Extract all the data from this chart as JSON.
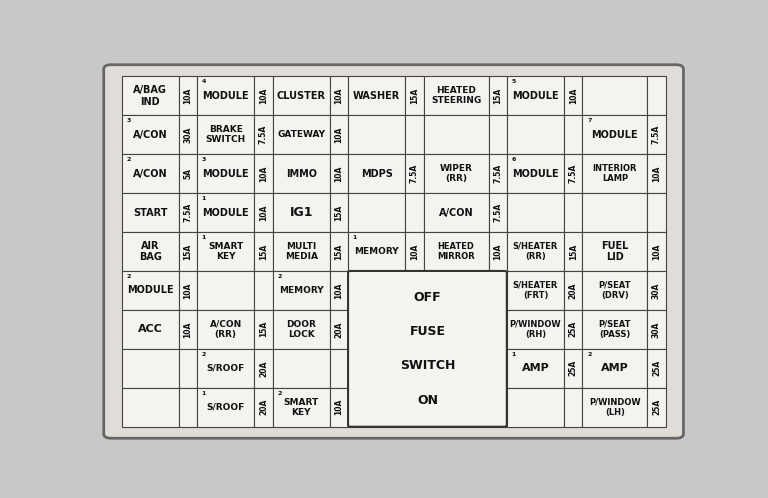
{
  "bg_color": "#c8c8c8",
  "outer_bg": "#e0ddd8",
  "cell_bg": "#f5f3ee",
  "border_color": "#444444",
  "text_color": "#111111",
  "grid_rows": 9,
  "grid_cols": 14,
  "col_widths": [
    2.2,
    0.7,
    2.2,
    0.7,
    2.2,
    0.7,
    2.2,
    0.7,
    2.5,
    0.7,
    2.2,
    0.7,
    2.5,
    0.7
  ],
  "row_heights": [
    1.0,
    1.0,
    1.0,
    1.0,
    1.0,
    1.0,
    1.0,
    1.0,
    1.0
  ],
  "cells": [
    {
      "r": 0,
      "c": 0,
      "label": "A/BAG\nIND",
      "sup": "",
      "fs": 7
    },
    {
      "r": 0,
      "c": 1,
      "label": "10A",
      "vert": true,
      "fs": 5.5
    },
    {
      "r": 0,
      "c": 2,
      "label": "MODULE",
      "sup": "4",
      "fs": 7
    },
    {
      "r": 0,
      "c": 3,
      "label": "10A",
      "vert": true,
      "fs": 5.5
    },
    {
      "r": 0,
      "c": 4,
      "label": "CLUSTER",
      "sup": "",
      "fs": 7
    },
    {
      "r": 0,
      "c": 5,
      "label": "10A",
      "vert": true,
      "fs": 5.5
    },
    {
      "r": 0,
      "c": 6,
      "label": "WASHER",
      "sup": "",
      "fs": 7
    },
    {
      "r": 0,
      "c": 7,
      "label": "15A",
      "vert": true,
      "fs": 5.5
    },
    {
      "r": 0,
      "c": 8,
      "label": "HEATED\nSTEERING",
      "sup": "",
      "fs": 6.5
    },
    {
      "r": 0,
      "c": 9,
      "label": "15A",
      "vert": true,
      "fs": 5.5
    },
    {
      "r": 0,
      "c": 10,
      "label": "MODULE",
      "sup": "5",
      "fs": 7
    },
    {
      "r": 0,
      "c": 11,
      "label": "10A",
      "vert": true,
      "fs": 5.5
    },
    {
      "r": 0,
      "c": 12,
      "label": "",
      "sup": "",
      "fs": 7
    },
    {
      "r": 0,
      "c": 13,
      "label": "",
      "vert": true,
      "fs": 5.5
    },
    {
      "r": 1,
      "c": 0,
      "label": "A/CON",
      "sup": "3",
      "fs": 7
    },
    {
      "r": 1,
      "c": 1,
      "label": "30A",
      "vert": true,
      "fs": 5.5
    },
    {
      "r": 1,
      "c": 2,
      "label": "BRAKE\nSWITCH",
      "sup": "",
      "fs": 6.5
    },
    {
      "r": 1,
      "c": 3,
      "label": "7.5A",
      "vert": true,
      "fs": 5.5
    },
    {
      "r": 1,
      "c": 4,
      "label": "GATEWAY",
      "sup": "",
      "fs": 6.5
    },
    {
      "r": 1,
      "c": 5,
      "label": "10A",
      "vert": true,
      "fs": 5.5
    },
    {
      "r": 1,
      "c": 6,
      "label": "",
      "sup": "",
      "fs": 7
    },
    {
      "r": 1,
      "c": 7,
      "label": "",
      "vert": false,
      "fs": 5.5
    },
    {
      "r": 1,
      "c": 8,
      "label": "",
      "sup": "",
      "fs": 7
    },
    {
      "r": 1,
      "c": 9,
      "label": "",
      "vert": false,
      "fs": 5.5
    },
    {
      "r": 1,
      "c": 10,
      "label": "",
      "sup": "",
      "fs": 7
    },
    {
      "r": 1,
      "c": 11,
      "label": "",
      "vert": false,
      "fs": 5.5
    },
    {
      "r": 1,
      "c": 12,
      "label": "MODULE",
      "sup": "7",
      "fs": 7
    },
    {
      "r": 1,
      "c": 13,
      "label": "7.5A",
      "vert": true,
      "fs": 5.5
    },
    {
      "r": 2,
      "c": 0,
      "label": "A/CON",
      "sup": "2",
      "fs": 7
    },
    {
      "r": 2,
      "c": 1,
      "label": "5A",
      "vert": true,
      "fs": 5.5
    },
    {
      "r": 2,
      "c": 2,
      "label": "MODULE",
      "sup": "3",
      "fs": 7
    },
    {
      "r": 2,
      "c": 3,
      "label": "10A",
      "vert": true,
      "fs": 5.5
    },
    {
      "r": 2,
      "c": 4,
      "label": "IMMO",
      "sup": "",
      "fs": 7
    },
    {
      "r": 2,
      "c": 5,
      "label": "10A",
      "vert": true,
      "fs": 5.5
    },
    {
      "r": 2,
      "c": 6,
      "label": "MDPS",
      "sup": "",
      "fs": 7
    },
    {
      "r": 2,
      "c": 7,
      "label": "7.5A",
      "vert": true,
      "fs": 5.5
    },
    {
      "r": 2,
      "c": 8,
      "label": "WIPER\n(RR)",
      "sup": "",
      "fs": 6.5
    },
    {
      "r": 2,
      "c": 9,
      "label": "7.5A",
      "vert": true,
      "fs": 5.5
    },
    {
      "r": 2,
      "c": 10,
      "label": "MODULE",
      "sup": "6",
      "fs": 7
    },
    {
      "r": 2,
      "c": 11,
      "label": "7.5A",
      "vert": true,
      "fs": 5.5
    },
    {
      "r": 2,
      "c": 12,
      "label": "INTERIOR\nLAMP",
      "sup": "",
      "fs": 6
    },
    {
      "r": 2,
      "c": 13,
      "label": "10A",
      "vert": true,
      "fs": 5.5
    },
    {
      "r": 3,
      "c": 0,
      "label": "START",
      "sup": "",
      "fs": 7
    },
    {
      "r": 3,
      "c": 1,
      "label": "7.5A",
      "vert": true,
      "fs": 5.5
    },
    {
      "r": 3,
      "c": 2,
      "label": "MODULE",
      "sup": "1",
      "fs": 7
    },
    {
      "r": 3,
      "c": 3,
      "label": "10A",
      "vert": true,
      "fs": 5.5
    },
    {
      "r": 3,
      "c": 4,
      "label": "IG1",
      "sup": "",
      "fs": 9
    },
    {
      "r": 3,
      "c": 5,
      "label": "15A",
      "vert": true,
      "fs": 5.5
    },
    {
      "r": 3,
      "c": 6,
      "label": "",
      "sup": "",
      "fs": 7
    },
    {
      "r": 3,
      "c": 7,
      "label": "",
      "vert": false,
      "fs": 5.5
    },
    {
      "r": 3,
      "c": 8,
      "label": "A/CON",
      "sup": "",
      "fs": 7
    },
    {
      "r": 3,
      "c": 9,
      "label": "7.5A",
      "vert": true,
      "fs": 5.5
    },
    {
      "r": 3,
      "c": 10,
      "label": "",
      "sup": "",
      "fs": 7
    },
    {
      "r": 3,
      "c": 11,
      "label": "",
      "vert": false,
      "fs": 5.5
    },
    {
      "r": 3,
      "c": 12,
      "label": "",
      "sup": "",
      "fs": 7
    },
    {
      "r": 3,
      "c": 13,
      "label": "",
      "vert": false,
      "fs": 5.5
    },
    {
      "r": 4,
      "c": 0,
      "label": "AIR\nBAG",
      "sup": "",
      "fs": 7
    },
    {
      "r": 4,
      "c": 1,
      "label": "15A",
      "vert": true,
      "fs": 5.5
    },
    {
      "r": 4,
      "c": 2,
      "label": "SMART\nKEY",
      "sup": "1",
      "fs": 6.5
    },
    {
      "r": 4,
      "c": 3,
      "label": "15A",
      "vert": true,
      "fs": 5.5
    },
    {
      "r": 4,
      "c": 4,
      "label": "MULTI\nMEDIA",
      "sup": "",
      "fs": 6.5
    },
    {
      "r": 4,
      "c": 5,
      "label": "15A",
      "vert": true,
      "fs": 5.5
    },
    {
      "r": 4,
      "c": 6,
      "label": "MEMORY",
      "sup": "1",
      "fs": 6.5
    },
    {
      "r": 4,
      "c": 7,
      "label": "10A",
      "vert": true,
      "fs": 5.5
    },
    {
      "r": 4,
      "c": 8,
      "label": "HEATED\nMIRROR",
      "sup": "",
      "fs": 6
    },
    {
      "r": 4,
      "c": 9,
      "label": "10A",
      "vert": true,
      "fs": 5.5
    },
    {
      "r": 4,
      "c": 10,
      "label": "S/HEATER\n(RR)",
      "sup": "",
      "fs": 6
    },
    {
      "r": 4,
      "c": 11,
      "label": "15A",
      "vert": true,
      "fs": 5.5
    },
    {
      "r": 4,
      "c": 12,
      "label": "FUEL\nLID",
      "sup": "",
      "fs": 7
    },
    {
      "r": 4,
      "c": 13,
      "label": "10A",
      "vert": true,
      "fs": 5.5
    },
    {
      "r": 5,
      "c": 0,
      "label": "MODULE",
      "sup": "2",
      "fs": 7
    },
    {
      "r": 5,
      "c": 1,
      "label": "10A",
      "vert": true,
      "fs": 5.5
    },
    {
      "r": 5,
      "c": 2,
      "label": "",
      "sup": "",
      "fs": 7
    },
    {
      "r": 5,
      "c": 3,
      "label": "",
      "vert": false,
      "fs": 5.5
    },
    {
      "r": 5,
      "c": 4,
      "label": "MEMORY",
      "sup": "2",
      "fs": 6.5
    },
    {
      "r": 5,
      "c": 5,
      "label": "10A",
      "vert": true,
      "fs": 5.5
    },
    {
      "r": 5,
      "c": 6,
      "label": "FUSE_SWITCH",
      "sup": "",
      "fs": 7
    },
    {
      "r": 5,
      "c": 10,
      "label": "S/HEATER\n(FRT)",
      "sup": "",
      "fs": 6
    },
    {
      "r": 5,
      "c": 11,
      "label": "20A",
      "vert": true,
      "fs": 5.5
    },
    {
      "r": 5,
      "c": 12,
      "label": "P/SEAT\n(DRV)",
      "sup": "",
      "fs": 6
    },
    {
      "r": 5,
      "c": 13,
      "label": "30A",
      "vert": true,
      "fs": 5.5
    },
    {
      "r": 6,
      "c": 0,
      "label": "ACC",
      "sup": "",
      "fs": 8
    },
    {
      "r": 6,
      "c": 1,
      "label": "10A",
      "vert": true,
      "fs": 5.5
    },
    {
      "r": 6,
      "c": 2,
      "label": "A/CON\n(RR)",
      "sup": "",
      "fs": 6.5
    },
    {
      "r": 6,
      "c": 3,
      "label": "15A",
      "vert": true,
      "fs": 5.5
    },
    {
      "r": 6,
      "c": 4,
      "label": "DOOR\nLOCK",
      "sup": "",
      "fs": 6.5
    },
    {
      "r": 6,
      "c": 5,
      "label": "20A",
      "vert": true,
      "fs": 5.5
    },
    {
      "r": 6,
      "c": 10,
      "label": "P/WINDOW\n(RH)",
      "sup": "",
      "fs": 6
    },
    {
      "r": 6,
      "c": 11,
      "label": "25A",
      "vert": true,
      "fs": 5.5
    },
    {
      "r": 6,
      "c": 12,
      "label": "P/SEAT\n(PASS)",
      "sup": "",
      "fs": 6
    },
    {
      "r": 6,
      "c": 13,
      "label": "30A",
      "vert": true,
      "fs": 5.5
    },
    {
      "r": 7,
      "c": 0,
      "label": "",
      "sup": "",
      "fs": 7
    },
    {
      "r": 7,
      "c": 1,
      "label": "",
      "vert": false,
      "fs": 5.5
    },
    {
      "r": 7,
      "c": 2,
      "label": "S/ROOF",
      "sup": "2",
      "fs": 6.5
    },
    {
      "r": 7,
      "c": 3,
      "label": "20A",
      "vert": true,
      "fs": 5.5
    },
    {
      "r": 7,
      "c": 4,
      "label": "",
      "sup": "",
      "fs": 7
    },
    {
      "r": 7,
      "c": 5,
      "label": "",
      "vert": false,
      "fs": 5.5
    },
    {
      "r": 7,
      "c": 10,
      "label": "AMP",
      "sup": "1",
      "fs": 8
    },
    {
      "r": 7,
      "c": 11,
      "label": "25A",
      "vert": true,
      "fs": 5.5
    },
    {
      "r": 7,
      "c": 12,
      "label": "AMP",
      "sup": "2",
      "fs": 8
    },
    {
      "r": 7,
      "c": 13,
      "label": "25A",
      "vert": true,
      "fs": 5.5
    },
    {
      "r": 8,
      "c": 0,
      "label": "",
      "sup": "",
      "fs": 7
    },
    {
      "r": 8,
      "c": 1,
      "label": "",
      "vert": false,
      "fs": 5.5
    },
    {
      "r": 8,
      "c": 2,
      "label": "S/ROOF",
      "sup": "1",
      "fs": 6.5
    },
    {
      "r": 8,
      "c": 3,
      "label": "20A",
      "vert": true,
      "fs": 5.5
    },
    {
      "r": 8,
      "c": 4,
      "label": "SMART\nKEY",
      "sup": "2",
      "fs": 6.5
    },
    {
      "r": 8,
      "c": 5,
      "label": "10A",
      "vert": true,
      "fs": 5.5
    },
    {
      "r": 8,
      "c": 10,
      "label": "",
      "sup": "",
      "fs": 7
    },
    {
      "r": 8,
      "c": 11,
      "label": "",
      "vert": false,
      "fs": 5.5
    },
    {
      "r": 8,
      "c": 12,
      "label": "P/WINDOW\n(LH)",
      "sup": "",
      "fs": 6
    },
    {
      "r": 8,
      "c": 13,
      "label": "25A",
      "vert": true,
      "fs": 5.5
    }
  ],
  "switch_rows": [
    5,
    6,
    7,
    8
  ],
  "switch_cols": [
    6,
    7,
    8,
    9
  ],
  "switch_text": [
    "OFF",
    "FUSE",
    "SWITCH",
    "ON"
  ]
}
